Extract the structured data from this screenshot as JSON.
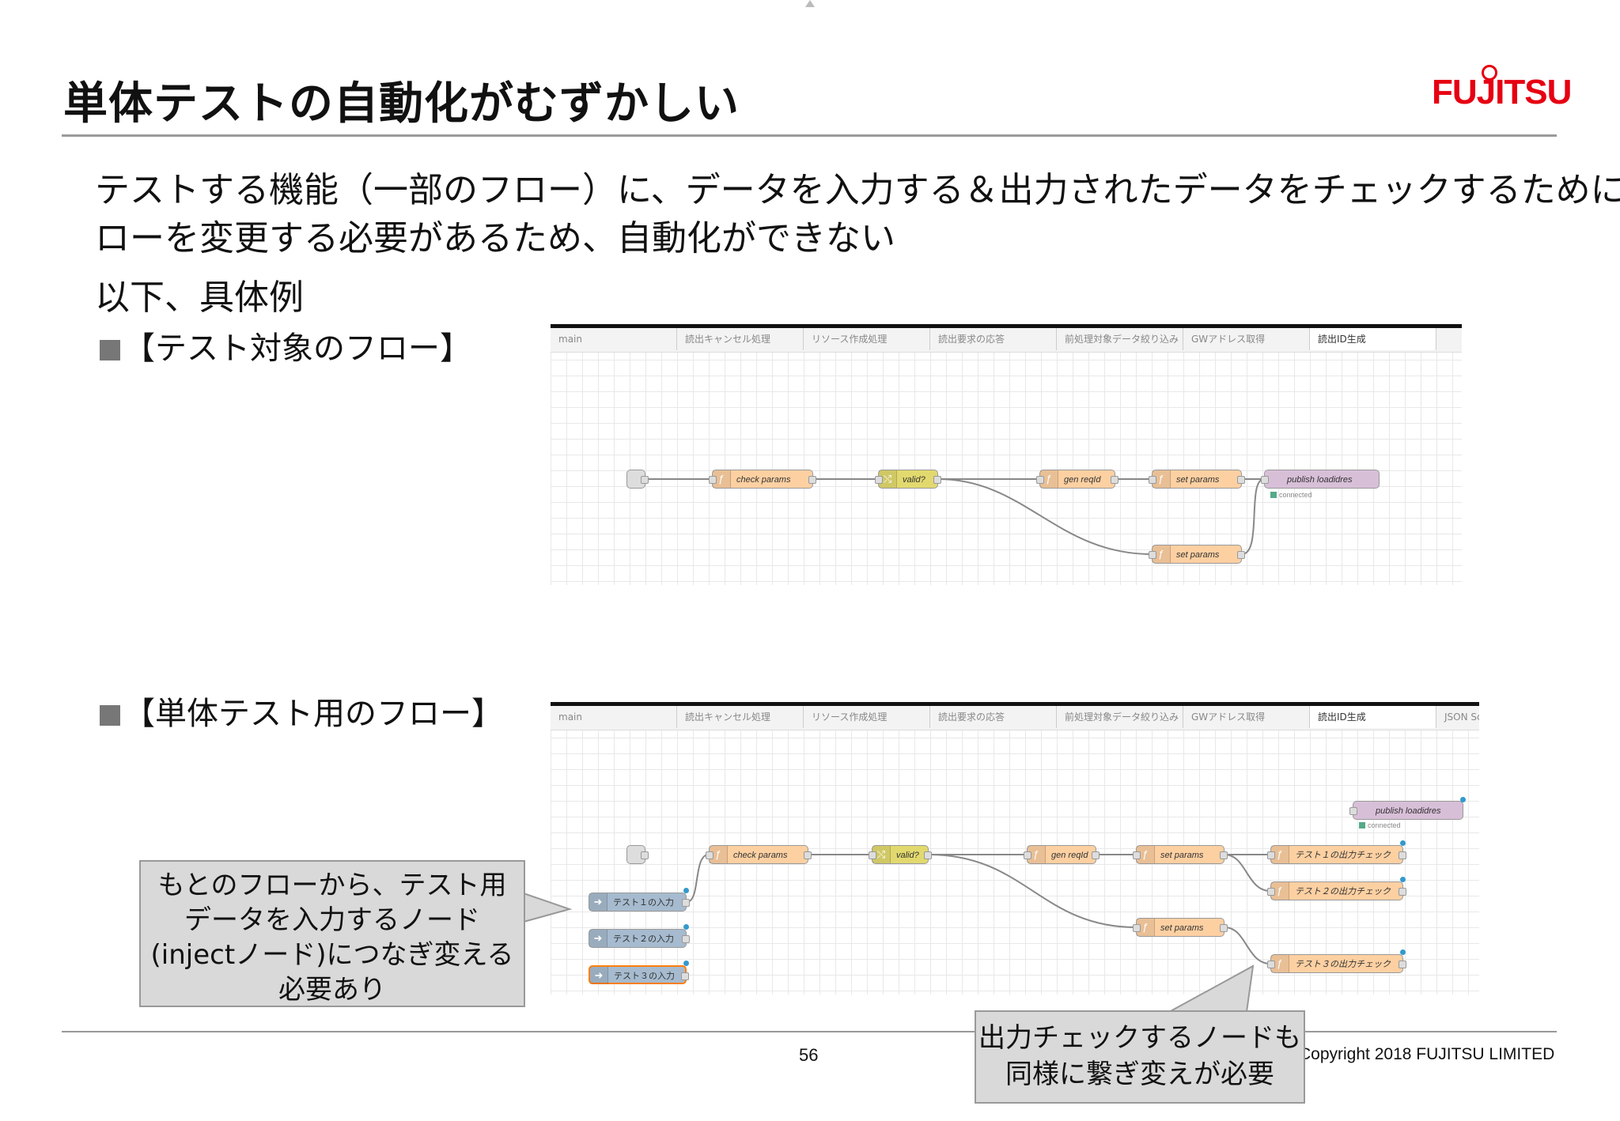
{
  "slide": {
    "title": "単体テストの自動化がむずかしい",
    "logo": "FUJITSU",
    "body_line1": "テストする機能（一部のフロー）に、データを入力する＆出力されたデータをチェックするために、フ",
    "body_line2": "ローを変更する必要があるため、自動化ができない",
    "body_line3": "以下、具体例",
    "section1": "【テスト対象のフロー】",
    "section2": "【単体テスト用のフロー】",
    "page_number": "56",
    "copyright": "Copyright 2018 FUJITSU LIMITED"
  },
  "flow1": {
    "tabs": [
      "main",
      "読出キャンセル処理",
      "リソース作成処理",
      "読出要求の応答",
      "前処理対象データ絞り込み",
      "GWアドレス取得",
      "読出ID生成"
    ],
    "active_tab": 6,
    "nodes": {
      "check_params": "check params",
      "valid": "valid?",
      "gen_reqid": "gen reqId",
      "set_params_1": "set params",
      "set_params_2": "set params",
      "publish": "publish loadidres",
      "status": "connected"
    }
  },
  "flow2": {
    "tabs": [
      "main",
      "読出キャンセル処理",
      "リソース作成処理",
      "読出要求の応答",
      "前処理対象データ絞り込み",
      "GWアドレス取得",
      "読出ID生成",
      "JSON Sc"
    ],
    "active_tab": 6,
    "nodes": {
      "publish": "publish loadidres",
      "status": "connected",
      "check_params": "check params",
      "valid": "valid?",
      "gen_reqid": "gen reqId",
      "set_params_1": "set params",
      "set_params_2": "set params",
      "check_out1": "テスト１の出力チェック",
      "check_out2": "テスト２の出力チェック",
      "check_out3": "テスト３の出力チェック",
      "inject1": "テスト１の入力",
      "inject2": "テスト２の入力",
      "inject3": "テスト３の入力"
    }
  },
  "callout_left": {
    "line1": "もとのフローから、テスト用",
    "line2": "データを入力するノード",
    "line3": "(injectノード)につなぎ変える",
    "line4": "必要あり"
  },
  "callout_right": {
    "line1": "出力チェックするノードも",
    "line2": "同様に繋ぎ変えが必要"
  },
  "colors": {
    "logo_red": "#e60012",
    "function_node": "#fdd0a2",
    "switch_node": "#e2d96e",
    "mqtt_node": "#d8bfd8",
    "inject_node": "#a6bbcf"
  }
}
